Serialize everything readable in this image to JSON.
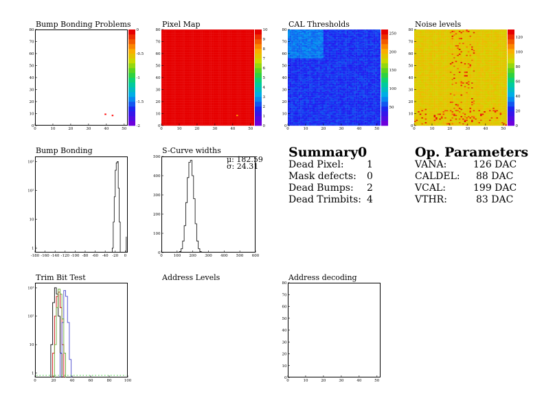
{
  "panels": {
    "bump_bonding_problems": {
      "title": "Bump Bonding Problems"
    },
    "pixel_map": {
      "title": "Pixel Map"
    },
    "cal_thresholds": {
      "title": "CAL Thresholds"
    },
    "noise_levels": {
      "title": "Noise levels"
    },
    "bump_bonding": {
      "title": "Bump Bonding"
    },
    "s_curve_widths": {
      "title": "S-Curve widths",
      "mu": "μ: 182.59",
      "sigma": "σ: 24.31"
    },
    "trim_bit_test": {
      "title": "Trim Bit Test"
    },
    "address_levels": {
      "title": "Address Levels"
    },
    "address_decoding": {
      "title": "Address decoding"
    }
  },
  "summary": {
    "title": "Summary",
    "count": "0",
    "rows": [
      {
        "label": "Dead Pixel:",
        "value": "1"
      },
      {
        "label": "Mask defects:",
        "value": "0"
      },
      {
        "label": "Dead Bumps:",
        "value": "2"
      },
      {
        "label": "Dead Trimbits:",
        "value": "4"
      }
    ]
  },
  "op_parameters": {
    "title": "Op. Parameters",
    "rows": [
      {
        "label": "VANA:",
        "value": "126 DAC"
      },
      {
        "label": "CALDEL:",
        "value": "88 DAC"
      },
      {
        "label": "VCAL:",
        "value": "199 DAC"
      },
      {
        "label": "VTHR:",
        "value": "83 DAC"
      }
    ]
  },
  "chart_data": [
    {
      "type": "heatmap",
      "title": "Bump Bonding Problems",
      "xlim": [
        0,
        52
      ],
      "ylim": [
        0,
        80
      ],
      "xticks": [
        "0",
        "10",
        "20",
        "30",
        "40",
        "50"
      ],
      "yticks": [
        "0",
        "10",
        "20",
        "30",
        "40",
        "50",
        "60",
        "70",
        "80"
      ],
      "zticks": [
        "0",
        "-0.5",
        "-1",
        "-1.5",
        "-2"
      ],
      "zlim": [
        -2,
        0
      ],
      "points": [
        {
          "x": 39,
          "y": 9,
          "z": -2
        },
        {
          "x": 43,
          "y": 8,
          "z": -2
        }
      ]
    },
    {
      "type": "heatmap",
      "title": "Pixel Map",
      "xlim": [
        0,
        52
      ],
      "ylim": [
        0,
        80
      ],
      "xticks": [
        "0",
        "10",
        "20",
        "30",
        "40",
        "50"
      ],
      "yticks": [
        "0",
        "10",
        "20",
        "30",
        "40",
        "50",
        "60",
        "70",
        "80"
      ],
      "zticks": [
        "0",
        "1",
        "2",
        "3",
        "4",
        "5",
        "6",
        "7",
        "8",
        "9",
        "10"
      ],
      "zlim": [
        0,
        10
      ],
      "uniform_value": 10,
      "points": [
        {
          "x": 42,
          "y": 8,
          "z": 8
        }
      ]
    },
    {
      "type": "heatmap",
      "title": "CAL Thresholds",
      "xlim": [
        0,
        52
      ],
      "ylim": [
        0,
        80
      ],
      "xticks": [
        "0",
        "10",
        "20",
        "30",
        "40",
        "50"
      ],
      "yticks": [
        "0",
        "10",
        "20",
        "30",
        "40",
        "50",
        "60",
        "70",
        "80"
      ],
      "zticks": [
        "50",
        "100",
        "150",
        "200",
        "250"
      ],
      "zlim": [
        0,
        260
      ],
      "typical_value": 45
    },
    {
      "type": "heatmap",
      "title": "Noise levels",
      "xlim": [
        0,
        52
      ],
      "ylim": [
        0,
        80
      ],
      "xticks": [
        "0",
        "10",
        "20",
        "30",
        "40",
        "50"
      ],
      "yticks": [
        "0",
        "10",
        "20",
        "30",
        "40",
        "50",
        "60",
        "70",
        "80"
      ],
      "zticks": [
        "0",
        "20",
        "40",
        "60",
        "80",
        "100",
        "120"
      ],
      "zlim": [
        0,
        130
      ],
      "typical_value": 95,
      "hot_columns": [
        20,
        33
      ]
    },
    {
      "type": "bar",
      "title": "Bump Bonding",
      "xlim": [
        -180,
        5
      ],
      "yscale": "log",
      "ylim": [
        0.7,
        1500
      ],
      "xticks": [
        "-180",
        "-160",
        "-140",
        "-120",
        "-100",
        "-80",
        "-60",
        "-40",
        "-20",
        "0"
      ],
      "yticks": [
        "1",
        "10",
        "10²",
        "10³"
      ],
      "x": [
        -179,
        -25,
        -23,
        -21,
        -19,
        -17,
        -15,
        -13,
        -11,
        2
      ],
      "values": [
        1,
        1,
        8,
        60,
        500,
        900,
        1000,
        120,
        8,
        2
      ]
    },
    {
      "type": "bar",
      "title": "S-Curve widths",
      "xlim": [
        0,
        600
      ],
      "ylim": [
        0,
        500
      ],
      "xticks": [
        "0",
        "100",
        "200",
        "300",
        "400",
        "500",
        "600"
      ],
      "yticks": [
        "0",
        "100",
        "200",
        "300",
        "400",
        "500"
      ],
      "x": [
        120,
        130,
        140,
        150,
        160,
        170,
        180,
        190,
        200,
        210,
        220,
        230,
        240,
        250
      ],
      "values": [
        5,
        20,
        60,
        140,
        260,
        390,
        470,
        480,
        400,
        280,
        150,
        60,
        20,
        5
      ],
      "stats": {
        "mean": 182.59,
        "sigma": 24.31
      }
    },
    {
      "type": "line",
      "title": "Trim Bit Test",
      "xlim": [
        0,
        100
      ],
      "yscale": "log",
      "ylim": [
        0.7,
        1500
      ],
      "xticks": [
        "0",
        "20",
        "40",
        "60",
        "80",
        "100"
      ],
      "yticks": [
        "1",
        "10",
        "10²",
        "10³"
      ],
      "series": [
        {
          "color": "#000000",
          "x": [
            18,
            20,
            22,
            24,
            26,
            28
          ],
          "values": [
            10,
            300,
            1000,
            600,
            100,
            5
          ]
        },
        {
          "color": "#cc0000",
          "x": [
            20,
            22,
            24,
            26,
            28,
            30
          ],
          "values": [
            5,
            100,
            500,
            700,
            200,
            10
          ]
        },
        {
          "color": "#4444cc",
          "x": [
            28,
            30,
            32,
            34,
            36,
            38
          ],
          "values": [
            5,
            60,
            800,
            500,
            60,
            3
          ]
        },
        {
          "color": "#66aa33",
          "x": [
            22,
            24,
            26,
            28,
            30,
            32
          ],
          "values": [
            10,
            200,
            900,
            600,
            80,
            5
          ]
        }
      ]
    },
    {
      "type": "heatmap",
      "title": "Address decoding",
      "xlim": [
        0,
        52
      ],
      "ylim": [
        0,
        80
      ],
      "xticks": [
        "0",
        "10",
        "20",
        "30",
        "40",
        "50"
      ],
      "yticks": [
        "0",
        "10",
        "20",
        "30",
        "40",
        "50",
        "60",
        "70",
        "80"
      ]
    }
  ],
  "colors": {
    "axis": "#000000",
    "dead_pixel": "#ff0000"
  }
}
